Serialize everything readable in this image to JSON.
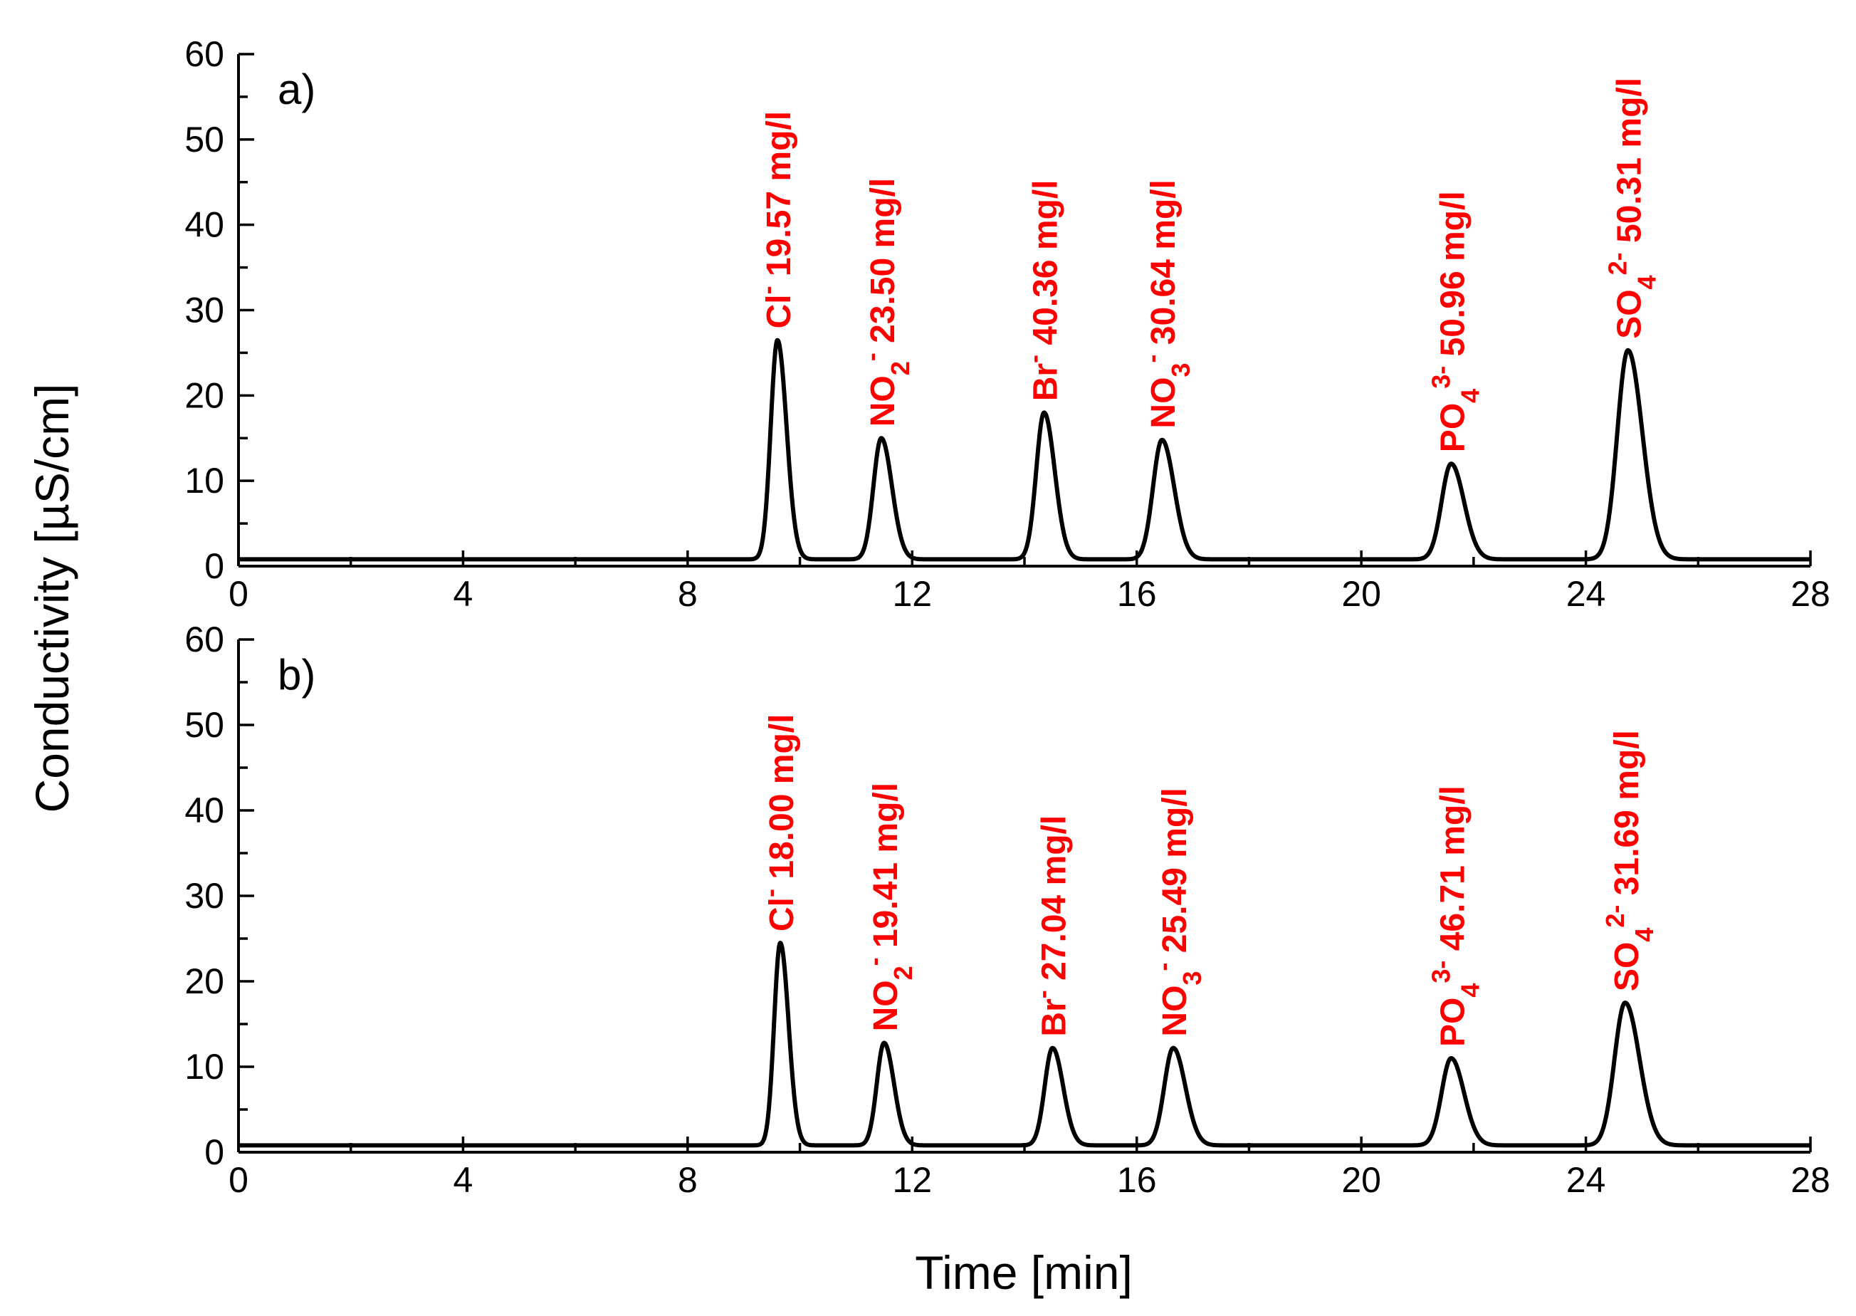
{
  "chart_data": {
    "type": "line",
    "ylabel": "Conductivity [µS/cm]",
    "xlabel": "Time [min]",
    "label_color": "#ff0000",
    "line_color": "#000000",
    "xlim": [
      0,
      28
    ],
    "ylim": [
      0,
      60
    ],
    "x_ticks": [
      "0",
      "4",
      "8",
      "12",
      "16",
      "20",
      "24",
      "28"
    ],
    "y_ticks": [
      "0",
      "10",
      "20",
      "30",
      "40",
      "50",
      "60"
    ],
    "panels": [
      {
        "label": "a)",
        "baseline": 0.8,
        "peaks": [
          {
            "time": 9.6,
            "height": 26.5,
            "width": 0.12,
            "ion": "Cl",
            "sub": "",
            "charge": "-",
            "conc": "19.57 mg/l"
          },
          {
            "time": 11.45,
            "height": 15.0,
            "width": 0.14,
            "ion": "NO",
            "sub": "2",
            "charge": "-",
            "conc": "23.50 mg/l"
          },
          {
            "time": 14.35,
            "height": 18.0,
            "width": 0.14,
            "ion": "Br",
            "sub": "",
            "charge": "-",
            "conc": "40.36 mg/l"
          },
          {
            "time": 16.45,
            "height": 14.8,
            "width": 0.16,
            "ion": "NO",
            "sub": "3",
            "charge": "-",
            "conc": "30.64 mg/l"
          },
          {
            "time": 21.6,
            "height": 12.0,
            "width": 0.17,
            "ion": "PO",
            "sub": "4",
            "charge": "3-",
            "conc": "50.96 mg/l"
          },
          {
            "time": 24.75,
            "height": 25.3,
            "width": 0.19,
            "ion": "SO",
            "sub": "4",
            "charge": "2-",
            "conc": "50.31 mg/l"
          }
        ]
      },
      {
        "label": "b)",
        "baseline": 0.8,
        "peaks": [
          {
            "time": 9.65,
            "height": 24.5,
            "width": 0.11,
            "ion": "Cl",
            "sub": "",
            "charge": "-",
            "conc": "18.00 mg/l"
          },
          {
            "time": 11.5,
            "height": 12.8,
            "width": 0.13,
            "ion": "NO",
            "sub": "2",
            "charge": "-",
            "conc": "19.41 mg/l"
          },
          {
            "time": 14.5,
            "height": 12.2,
            "width": 0.14,
            "ion": "Br",
            "sub": "",
            "charge": "-",
            "conc": "27.04 mg/l"
          },
          {
            "time": 16.65,
            "height": 12.2,
            "width": 0.16,
            "ion": "NO",
            "sub": "3",
            "charge": "-",
            "conc": "25.49 mg/l"
          },
          {
            "time": 21.6,
            "height": 11.0,
            "width": 0.17,
            "ion": "PO",
            "sub": "4",
            "charge": "3-",
            "conc": "46.71 mg/l"
          },
          {
            "time": 24.7,
            "height": 17.5,
            "width": 0.19,
            "ion": "SO",
            "sub": "4",
            "charge": "2-",
            "conc": "31.69 mg/l"
          }
        ]
      }
    ]
  }
}
